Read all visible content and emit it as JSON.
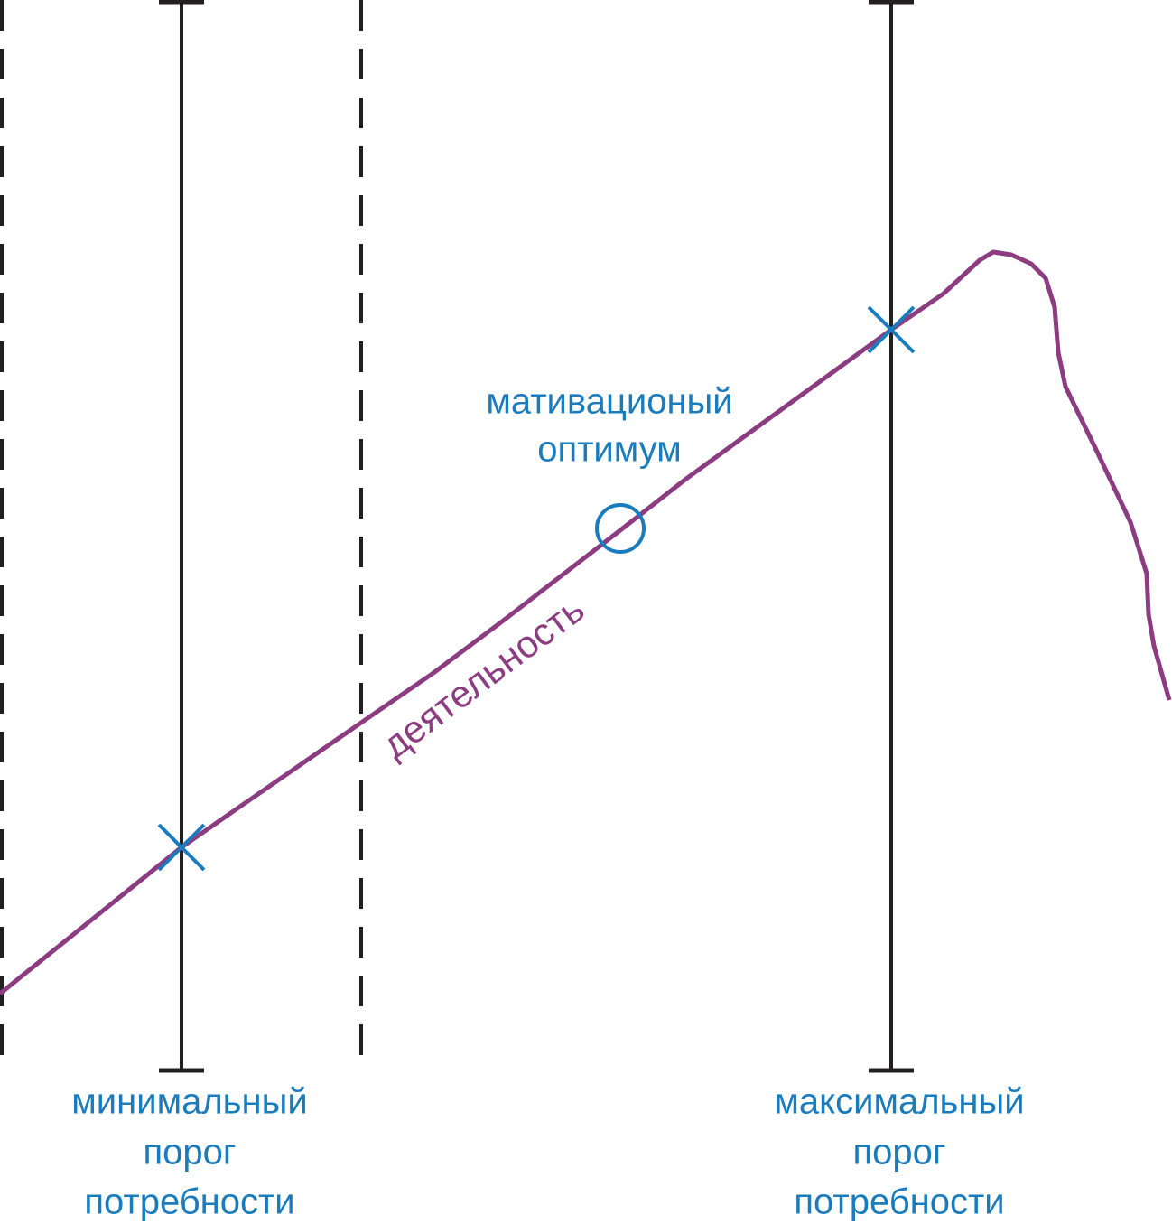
{
  "optimum_label": [
    "мативационый",
    "оптимум"
  ],
  "activity_label": "деятельность",
  "min_label": [
    "минимальный",
    "порог",
    "потребности"
  ],
  "max_label": [
    "максимальный",
    "порог",
    "потребности"
  ]
}
